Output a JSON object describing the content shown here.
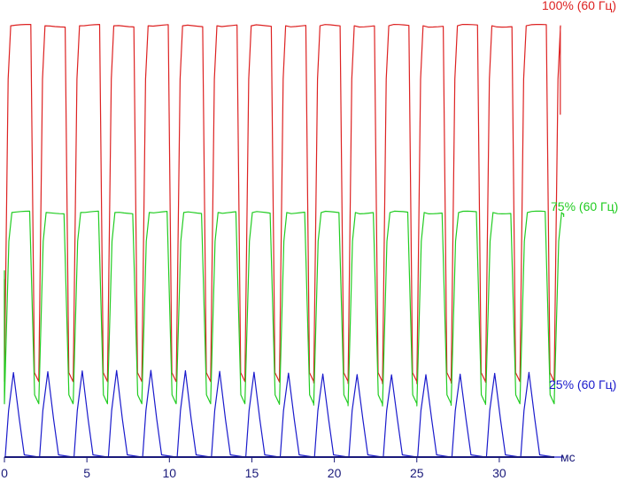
{
  "chart_data": {
    "type": "line",
    "xlabel": "мс",
    "xlim": [
      0,
      34.5
    ],
    "xticks": [
      0,
      5,
      10,
      15,
      20,
      25,
      30
    ],
    "ylim": [
      0,
      100
    ],
    "grid": false,
    "refresh_period_ms": 2.08,
    "series": [
      {
        "name": "100% (60 Гц)",
        "color": "#dd2222",
        "high_level": 97,
        "low_level": 17,
        "pulse_starts_ms": [
          0.0,
          2.08,
          4.17,
          6.25,
          8.33,
          10.42,
          12.5,
          14.58,
          16.67,
          18.75,
          20.83,
          22.92,
          25.0,
          27.08,
          29.17,
          31.25,
          33.33
        ],
        "end_ms": 33.7
      },
      {
        "name": "75% (60 Гц)",
        "color": "#22cc22",
        "high_level": 55,
        "low_level": 12,
        "pulse_starts_ms": [
          0.0,
          2.08,
          4.17,
          6.25,
          8.33,
          10.42,
          12.5,
          14.58,
          16.67,
          18.75,
          20.83,
          22.92,
          25.0,
          27.08,
          29.17,
          31.25,
          33.33
        ],
        "end_ms": 33.9
      },
      {
        "name": "25% (60 Гц)",
        "color": "#1a1acc",
        "high_level": 19,
        "low_level": 0,
        "pulse_starts_ms": [
          0.0,
          2.08,
          4.17,
          6.25,
          8.33,
          10.42,
          12.5,
          14.58,
          16.67,
          18.75,
          20.83,
          22.92,
          25.0,
          27.08,
          29.17,
          31.25
        ],
        "end_ms": 33.9
      }
    ]
  }
}
